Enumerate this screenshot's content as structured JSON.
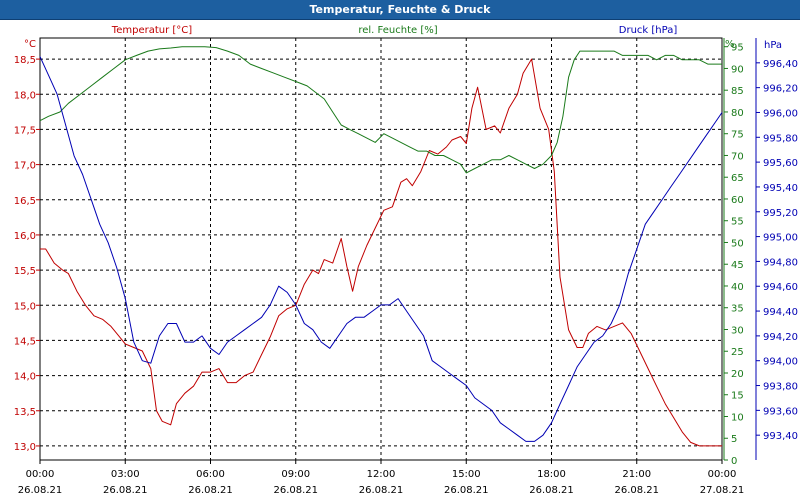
{
  "chart_data": {
    "type": "line",
    "title": "Temperatur, Feuchte & Druck",
    "colors": {
      "title_bar": "#1d5fa0",
      "temperature": "#c00000",
      "humidity": "#1a7a1a",
      "pressure": "#0000b4",
      "grid": "#000000"
    },
    "grid": true,
    "legend_position": "top",
    "x_tick_times": [
      "00:00",
      "03:00",
      "06:00",
      "09:00",
      "12:00",
      "15:00",
      "18:00",
      "21:00",
      "00:00"
    ],
    "x_tick_dates": [
      "26.08.21",
      "26.08.21",
      "26.08.21",
      "26.08.21",
      "26.08.21",
      "26.08.21",
      "26.08.21",
      "26.08.21",
      "27.08.21"
    ],
    "x_range": [
      0,
      24
    ],
    "axes": {
      "temperature": {
        "label": "Temperatur [°C]",
        "unit": "°C",
        "range": [
          12.8,
          18.8
        ],
        "ticks": [
          "13,0",
          "13,5",
          "14,0",
          "14,5",
          "15,0",
          "15,5",
          "16,0",
          "16,5",
          "17,0",
          "17,5",
          "18,0",
          "18,5"
        ],
        "tick_values": [
          13.0,
          13.5,
          14.0,
          14.5,
          15.0,
          15.5,
          16.0,
          16.5,
          17.0,
          17.5,
          18.0,
          18.5
        ]
      },
      "humidity": {
        "label": "rel. Feuchte [%]",
        "unit": "%",
        "range": [
          0,
          97
        ],
        "ticks": [
          "0",
          "5",
          "10",
          "15",
          "20",
          "25",
          "30",
          "35",
          "40",
          "45",
          "50",
          "55",
          "60",
          "65",
          "70",
          "75",
          "80",
          "85",
          "90",
          "95"
        ],
        "tick_values": [
          0,
          5,
          10,
          15,
          20,
          25,
          30,
          35,
          40,
          45,
          50,
          55,
          60,
          65,
          70,
          75,
          80,
          85,
          90,
          95
        ]
      },
      "pressure": {
        "label": "Druck [hPa]",
        "unit": "hPa",
        "range": [
          993.2,
          996.6
        ],
        "ticks": [
          "993,40",
          "993,60",
          "993,80",
          "994,00",
          "994,20",
          "994,40",
          "994,60",
          "994,80",
          "995,00",
          "995,20",
          "995,40",
          "995,60",
          "995,80",
          "996,00",
          "996,20",
          "996,40"
        ],
        "tick_values": [
          993.4,
          993.6,
          993.8,
          994.0,
          994.2,
          994.4,
          994.6,
          994.8,
          995.0,
          995.2,
          995.4,
          995.6,
          995.8,
          996.0,
          996.2,
          996.4
        ]
      }
    },
    "series": [
      {
        "name": "Temperatur [°C]",
        "axis": "temperature",
        "x": [
          0,
          0.2,
          0.5,
          0.8,
          1.0,
          1.3,
          1.6,
          1.9,
          2.2,
          2.5,
          2.8,
          3.0,
          3.3,
          3.6,
          3.9,
          4.1,
          4.3,
          4.6,
          4.8,
          5.1,
          5.4,
          5.7,
          6.0,
          6.3,
          6.6,
          6.9,
          7.2,
          7.5,
          7.8,
          8.1,
          8.4,
          8.7,
          9.0,
          9.3,
          9.6,
          9.8,
          10.0,
          10.3,
          10.6,
          10.8,
          11.0,
          11.2,
          11.5,
          11.8,
          12.1,
          12.4,
          12.7,
          12.9,
          13.1,
          13.4,
          13.7,
          14.0,
          14.3,
          14.5,
          14.8,
          15.0,
          15.2,
          15.4,
          15.7,
          16.0,
          16.2,
          16.5,
          16.8,
          17.0,
          17.3,
          17.6,
          17.9,
          18.1,
          18.3,
          18.6,
          18.9,
          19.1,
          19.3,
          19.6,
          19.9,
          20.2,
          20.5,
          20.8,
          21.1,
          21.4,
          21.7,
          22.0,
          22.3,
          22.6,
          22.9,
          23.2,
          23.5,
          23.8,
          24.0
        ],
        "y": [
          15.8,
          15.8,
          15.6,
          15.5,
          15.45,
          15.2,
          15.0,
          14.85,
          14.8,
          14.7,
          14.55,
          14.45,
          14.4,
          14.35,
          14.1,
          13.5,
          13.35,
          13.3,
          13.6,
          13.75,
          13.85,
          14.05,
          14.05,
          14.1,
          13.9,
          13.9,
          14.0,
          14.05,
          14.3,
          14.55,
          14.85,
          14.95,
          15.0,
          15.3,
          15.5,
          15.45,
          15.65,
          15.6,
          15.95,
          15.55,
          15.2,
          15.55,
          15.85,
          16.1,
          16.35,
          16.4,
          16.75,
          16.8,
          16.7,
          16.9,
          17.2,
          17.15,
          17.25,
          17.35,
          17.4,
          17.3,
          17.8,
          18.1,
          17.5,
          17.55,
          17.45,
          17.8,
          18.0,
          18.3,
          18.5,
          17.8,
          17.5,
          16.9,
          15.4,
          14.65,
          14.4,
          14.4,
          14.6,
          14.7,
          14.65,
          14.7,
          14.75,
          14.6,
          14.35,
          14.1,
          13.85,
          13.6,
          13.4,
          13.2,
          13.05,
          13.0,
          13.0,
          13.0,
          13.0
        ],
        "color": "#c00000"
      },
      {
        "name": "rel. Feuchte [%]",
        "axis": "humidity",
        "x": [
          0,
          0.3,
          0.7,
          1.0,
          1.4,
          1.8,
          2.2,
          2.6,
          3.0,
          3.4,
          3.8,
          4.2,
          4.6,
          5.0,
          5.4,
          5.8,
          6.2,
          6.6,
          7.0,
          7.4,
          7.8,
          8.2,
          8.6,
          9.0,
          9.4,
          9.8,
          10.0,
          10.3,
          10.6,
          10.9,
          11.2,
          11.5,
          11.8,
          12.1,
          12.4,
          12.7,
          13.0,
          13.3,
          13.6,
          13.9,
          14.2,
          14.5,
          14.8,
          15.0,
          15.3,
          15.6,
          15.9,
          16.2,
          16.5,
          16.8,
          17.1,
          17.4,
          17.7,
          18.0,
          18.2,
          18.4,
          18.6,
          18.8,
          19.0,
          19.3,
          19.6,
          19.9,
          20.2,
          20.5,
          20.8,
          21.1,
          21.4,
          21.7,
          22.0,
          22.3,
          22.6,
          22.9,
          23.2,
          23.5,
          23.8,
          24.0
        ],
        "y": [
          78,
          79,
          80,
          82,
          84,
          86,
          88,
          90,
          92,
          93,
          94,
          94.5,
          94.7,
          95,
          95,
          95,
          94.8,
          94,
          93,
          91,
          90,
          89,
          88,
          87,
          86,
          84,
          83,
          80,
          77,
          76,
          75,
          74,
          73,
          75,
          74,
          73,
          72,
          71,
          71,
          70,
          70,
          69,
          68,
          66,
          67,
          68,
          69,
          69,
          70,
          69,
          68,
          67,
          68,
          70,
          73,
          79,
          88,
          92,
          94,
          94,
          94,
          94,
          94,
          93,
          93,
          93,
          93,
          92,
          93,
          93,
          92,
          92,
          92,
          91,
          91,
          91
        ],
        "color": "#1a7a1a"
      },
      {
        "name": "Druck [hPa]",
        "axis": "pressure",
        "x": [
          0,
          0.3,
          0.6,
          0.9,
          1.2,
          1.5,
          1.8,
          2.1,
          2.4,
          2.7,
          3.0,
          3.3,
          3.6,
          3.9,
          4.2,
          4.5,
          4.8,
          5.1,
          5.4,
          5.7,
          6.0,
          6.3,
          6.6,
          6.9,
          7.2,
          7.5,
          7.8,
          8.1,
          8.4,
          8.7,
          9.0,
          9.3,
          9.6,
          9.9,
          10.2,
          10.5,
          10.8,
          11.1,
          11.4,
          11.7,
          12.0,
          12.3,
          12.6,
          12.9,
          13.2,
          13.5,
          13.8,
          14.1,
          14.4,
          14.7,
          15.0,
          15.3,
          15.6,
          15.9,
          16.2,
          16.5,
          16.8,
          17.1,
          17.4,
          17.7,
          18.0,
          18.3,
          18.6,
          18.9,
          19.2,
          19.5,
          19.8,
          20.1,
          20.4,
          20.7,
          21.0,
          21.3,
          21.6,
          21.9,
          22.2,
          22.5,
          22.8,
          23.1,
          23.4,
          23.7,
          24.0
        ],
        "y": [
          996.45,
          996.3,
          996.15,
          995.9,
          995.65,
          995.5,
          995.3,
          995.1,
          994.95,
          994.75,
          994.5,
          994.15,
          994.0,
          993.98,
          994.2,
          994.3,
          994.3,
          994.15,
          994.15,
          994.2,
          994.1,
          994.05,
          994.15,
          994.2,
          994.25,
          994.3,
          994.35,
          994.45,
          994.6,
          994.55,
          994.45,
          994.3,
          994.25,
          994.15,
          994.1,
          994.2,
          994.3,
          994.35,
          994.35,
          994.4,
          994.45,
          994.45,
          994.5,
          994.4,
          994.3,
          994.2,
          994.0,
          993.95,
          993.9,
          993.85,
          993.8,
          993.7,
          993.65,
          993.6,
          993.5,
          993.45,
          993.4,
          993.35,
          993.35,
          993.4,
          993.5,
          993.65,
          993.8,
          993.95,
          994.05,
          994.15,
          994.2,
          994.3,
          994.45,
          994.7,
          994.9,
          995.1,
          995.2,
          995.3,
          995.4,
          995.5,
          995.6,
          995.7,
          995.8,
          995.9,
          996.0
        ],
        "color": "#0000b4"
      }
    ]
  }
}
